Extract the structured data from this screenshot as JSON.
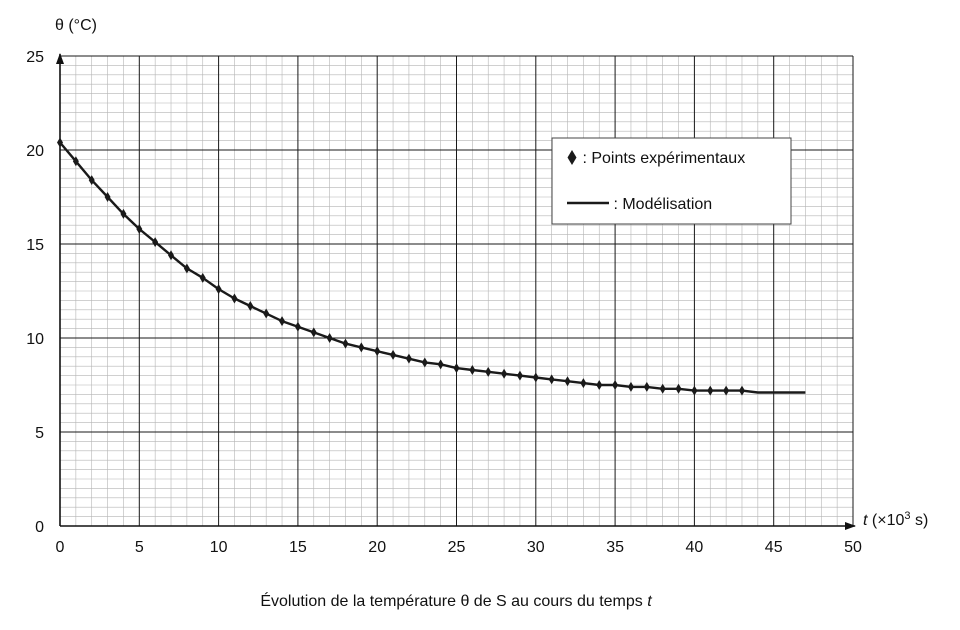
{
  "chart_data": {
    "type": "line",
    "ylabel": "θ (°C)",
    "xlabel": {
      "var": "t",
      "unit_prefix": " (×10",
      "unit_exp": "3",
      "unit_suffix": " s)"
    },
    "xlim": [
      0,
      50
    ],
    "ylim": [
      0,
      25
    ],
    "x_ticks": [
      0,
      5,
      10,
      15,
      20,
      25,
      30,
      35,
      40,
      45,
      50
    ],
    "y_ticks": [
      0,
      5,
      10,
      15,
      20,
      25
    ],
    "grid": true,
    "legend": {
      "position": "top-right",
      "entries": [
        {
          "marker": "♦",
          "label": " : Points expérimentaux"
        },
        {
          "marker": "line",
          "label": " : Modélisation"
        }
      ]
    },
    "series": [
      {
        "name": "Points expérimentaux",
        "style": "diamond",
        "x": [
          0,
          1,
          2,
          3,
          4,
          5,
          6,
          7,
          8,
          9,
          10,
          11,
          12,
          13,
          14,
          15,
          16,
          17,
          18,
          19,
          20,
          21,
          22,
          23,
          24,
          25,
          26,
          27,
          28,
          29,
          30,
          31,
          32,
          33,
          34,
          35,
          36,
          37,
          38,
          39,
          40,
          41,
          42,
          43
        ],
        "y": [
          20.4,
          19.4,
          18.4,
          17.5,
          16.6,
          15.8,
          15.1,
          14.4,
          13.7,
          13.2,
          12.6,
          12.1,
          11.7,
          11.3,
          10.9,
          10.6,
          10.3,
          10.0,
          9.7,
          9.5,
          9.3,
          9.1,
          8.9,
          8.7,
          8.6,
          8.4,
          8.3,
          8.2,
          8.1,
          8.0,
          7.9,
          7.8,
          7.7,
          7.6,
          7.5,
          7.5,
          7.4,
          7.4,
          7.3,
          7.3,
          7.2,
          7.2,
          7.2,
          7.2
        ]
      },
      {
        "name": "Modélisation",
        "style": "line",
        "x": [
          0,
          1,
          2,
          3,
          4,
          5,
          6,
          7,
          8,
          9,
          10,
          11,
          12,
          13,
          14,
          15,
          16,
          17,
          18,
          19,
          20,
          21,
          22,
          23,
          24,
          25,
          26,
          27,
          28,
          29,
          30,
          31,
          32,
          33,
          34,
          35,
          36,
          37,
          38,
          39,
          40,
          41,
          42,
          43,
          44,
          45,
          46,
          47
        ],
        "y": [
          20.4,
          19.4,
          18.4,
          17.5,
          16.6,
          15.8,
          15.1,
          14.4,
          13.7,
          13.2,
          12.6,
          12.1,
          11.7,
          11.3,
          10.9,
          10.6,
          10.3,
          10.0,
          9.7,
          9.5,
          9.3,
          9.1,
          8.9,
          8.7,
          8.6,
          8.4,
          8.3,
          8.2,
          8.1,
          8.0,
          7.9,
          7.8,
          7.7,
          7.6,
          7.5,
          7.5,
          7.4,
          7.4,
          7.3,
          7.3,
          7.2,
          7.2,
          7.2,
          7.2,
          7.1,
          7.1,
          7.1,
          7.1
        ]
      }
    ]
  },
  "caption": {
    "prefix": "Évolution de la température θ de S au cours du temps ",
    "var": "t"
  },
  "colors": {
    "major_grid": "#1a1a1a",
    "minor_grid": "#b5b5b5",
    "curve": "#1a1a1a",
    "axis": "#111111"
  }
}
